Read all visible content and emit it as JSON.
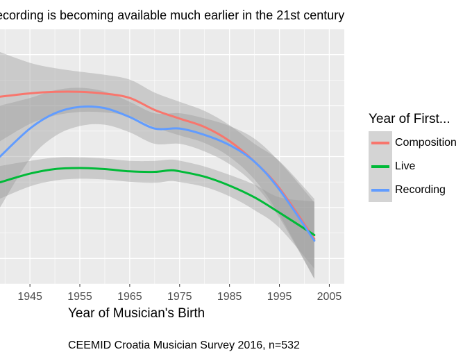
{
  "chart_data": {
    "type": "line",
    "title": "",
    "subtitle": "ecording is becoming available much earlier in the 21st century",
    "xlabel": "Year of Musician's Birth",
    "caption": "CEEMID Croatia Musician Survey 2016, n=532",
    "xlim": [
      1939,
      2008
    ],
    "ylim": [
      0,
      1
    ],
    "x_ticks": [
      1945,
      1955,
      1965,
      1975,
      1985,
      1995,
      2005
    ],
    "grid": true,
    "legend": {
      "title": "Year of First...",
      "placement": "right"
    },
    "series": [
      {
        "name": "Composition",
        "color": "#F8766D",
        "x": [
          1939,
          1945,
          1950,
          1955,
          1960,
          1965,
          1970,
          1975,
          1980,
          1985,
          1990,
          1995,
          2002
        ],
        "y": [
          0.735,
          0.748,
          0.754,
          0.754,
          0.747,
          0.73,
          0.683,
          0.649,
          0.616,
          0.561,
          0.48,
          0.376,
          0.177
        ],
        "band_lower": [
          0.56,
          0.628,
          0.661,
          0.675,
          0.673,
          0.658,
          0.615,
          0.583,
          0.553,
          0.499,
          0.41,
          0.27,
          0.02
        ],
        "band_upper": [
          0.91,
          0.868,
          0.847,
          0.833,
          0.821,
          0.802,
          0.751,
          0.715,
          0.679,
          0.623,
          0.55,
          0.482,
          0.334
        ]
      },
      {
        "name": "Live",
        "color": "#00BA38",
        "x": [
          1939,
          1945,
          1950,
          1955,
          1960,
          1965,
          1970,
          1973,
          1975,
          1980,
          1985,
          1990,
          1995,
          2002
        ],
        "y": [
          0.399,
          0.433,
          0.451,
          0.455,
          0.451,
          0.442,
          0.44,
          0.446,
          0.442,
          0.421,
          0.386,
          0.34,
          0.28,
          0.192
        ],
        "band_lower": [
          0.335,
          0.383,
          0.406,
          0.413,
          0.41,
          0.401,
          0.397,
          0.404,
          0.4,
          0.381,
          0.344,
          0.29,
          0.22,
          0.06
        ],
        "band_upper": [
          0.463,
          0.483,
          0.496,
          0.497,
          0.492,
          0.483,
          0.483,
          0.488,
          0.484,
          0.461,
          0.428,
          0.39,
          0.34,
          0.324
        ]
      },
      {
        "name": "Recording",
        "color": "#619CFF",
        "x": [
          1939,
          1945,
          1950,
          1955,
          1960,
          1965,
          1970,
          1975,
          1980,
          1985,
          1990,
          1995,
          2002
        ],
        "y": [
          0.5,
          0.61,
          0.67,
          0.695,
          0.69,
          0.655,
          0.61,
          0.61,
          0.585,
          0.545,
          0.48,
          0.37,
          0.17
        ],
        "band_lower": [
          0.3,
          0.49,
          0.58,
          0.62,
          0.625,
          0.595,
          0.55,
          0.55,
          0.52,
          0.47,
          0.39,
          0.26,
          0.02
        ],
        "band_upper": [
          0.7,
          0.73,
          0.76,
          0.77,
          0.755,
          0.715,
          0.67,
          0.67,
          0.65,
          0.62,
          0.57,
          0.48,
          0.32
        ]
      }
    ]
  }
}
